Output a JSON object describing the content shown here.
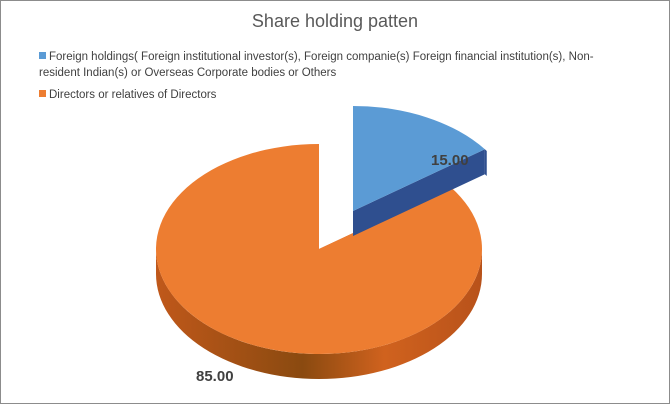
{
  "chart_data": {
    "type": "pie",
    "style": "3d-exploded",
    "title": "Share holding patten",
    "legend_position": "top",
    "slices": [
      {
        "name": "Foreign holdings( Foreign institutional investor(s), Foreign companie(s) Foreign financial institution(s), Non-resident Indian(s) or Overseas Corporate bodies or Others",
        "value": 15.0,
        "label": "15.00",
        "color": "#5b9bd5",
        "side_color": "#2f4f8f"
      },
      {
        "name": "Directors or relatives of Directors",
        "value": 85.0,
        "label": "85.00",
        "color": "#ed7d31",
        "side_color": "#c0581a"
      }
    ]
  }
}
